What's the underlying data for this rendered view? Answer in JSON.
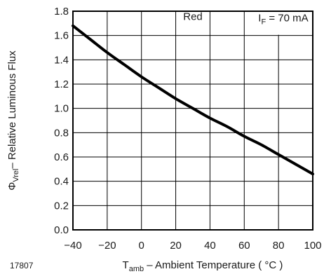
{
  "chart_data": {
    "type": "line",
    "figure_number": "17807",
    "xlabel": {
      "symbol": "T",
      "subscript": "amb",
      "text": " – Ambient Temperature ( °C )"
    },
    "ylabel": {
      "symbol": "Φ",
      "subscript": "Vrel",
      "text": "– Relative Luminous Flux"
    },
    "xlim": [
      -40,
      100
    ],
    "ylim": [
      0.0,
      1.8
    ],
    "x_ticks": [
      -40,
      -20,
      0,
      20,
      40,
      60,
      80,
      100
    ],
    "y_ticks": [
      0.0,
      0.2,
      0.4,
      0.6,
      0.8,
      1.0,
      1.2,
      1.4,
      1.6,
      1.8
    ],
    "grid": true,
    "annotations": {
      "color_label": "Red",
      "condition": {
        "symbol": "I",
        "subscript": "F",
        "text": " = 70 mA"
      }
    },
    "series": [
      {
        "x": [
          -40,
          -30,
          -20,
          -10,
          0,
          10,
          20,
          30,
          40,
          50,
          60,
          70,
          80,
          90,
          100
        ],
        "y": [
          1.68,
          1.57,
          1.46,
          1.36,
          1.26,
          1.17,
          1.08,
          1.0,
          0.92,
          0.85,
          0.77,
          0.7,
          0.62,
          0.54,
          0.46
        ]
      }
    ],
    "line_color": "#000000"
  }
}
